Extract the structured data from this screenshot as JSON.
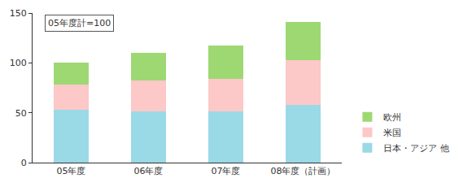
{
  "chart_data": {
    "type": "bar",
    "stacked": true,
    "categories": [
      "05年度",
      "06年度",
      "07年度",
      "08年度（計画）"
    ],
    "series": [
      {
        "name": "日本・アジア 他",
        "color": "#9ad9e6",
        "values": [
          53,
          51,
          51,
          58
        ]
      },
      {
        "name": "米国",
        "color": "#fcc8c8",
        "values": [
          25,
          31,
          33,
          45
        ]
      },
      {
        "name": "欧州",
        "color": "#9ed873",
        "values": [
          22,
          28,
          33,
          38
        ]
      }
    ],
    "ylim": [
      0,
      150
    ],
    "yticks": [
      0,
      50,
      100,
      150
    ],
    "grid": false,
    "legend": "right",
    "annotations": [
      "05年度計=100"
    ]
  }
}
